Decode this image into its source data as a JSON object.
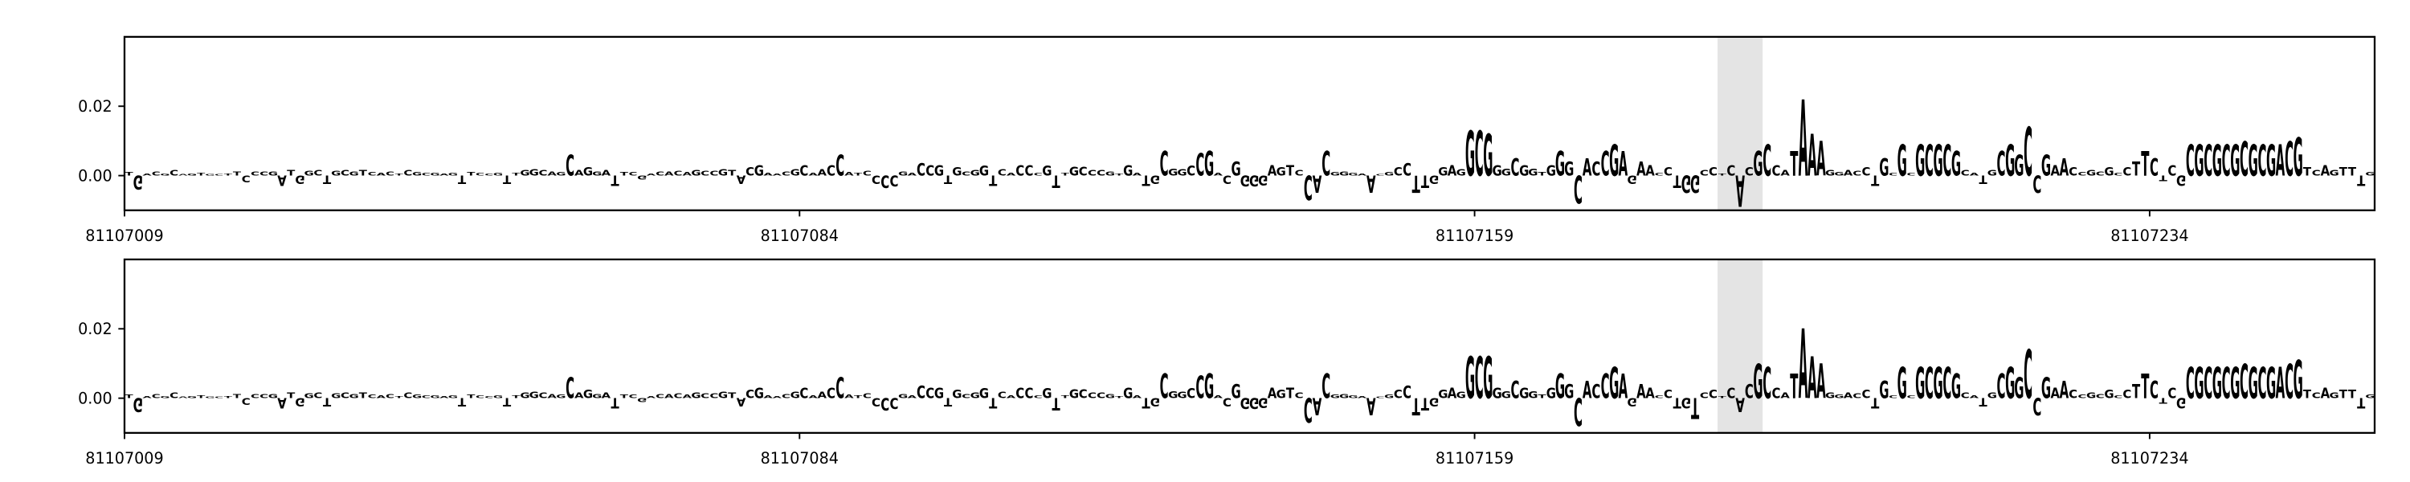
{
  "chart_data": [
    {
      "type": "logo",
      "sequence": "TGACGCAGTGCTTCCCGATGGCTGCGTCACTCGCGAGTTCCGTTGGCAGCAGGATTCGACACAGCCGTACGAACGCAACCATCCCCGACCGTGCGGTCACCCGTTGCCCGTGATGCGGCCGACGGGGAGTCCACGGGAACGCCTTGGAGGCGGGCGGTGGGCACCGAGAACCTGGCCTCACGCCATAAAGGACCTGCGCGCGCGCATGCGGCCGAACCGCGCCTTCTCGCGCGCGCGCGACGTCAGTTTG",
      "values": [
        0.001,
        -0.004,
        0.0006,
        0.0012,
        0.0006,
        0.0016,
        0.0004,
        0.0006,
        0.0008,
        0.0004,
        0.0004,
        0.0006,
        0.0012,
        -0.002,
        0.0012,
        0.0012,
        0.0012,
        -0.003,
        0.0016,
        -0.0024,
        0.0014,
        0.0016,
        -0.0024,
        0.0014,
        0.0016,
        0.0012,
        0.0016,
        0.001,
        0.0008,
        0.0012,
        0.0006,
        0.0016,
        0.001,
        0.0008,
        0.0008,
        0.0006,
        0.0008,
        -0.0024,
        0.001,
        0.0008,
        0.0006,
        0.0008,
        -0.0024,
        0.0008,
        0.0016,
        0.0018,
        0.0016,
        0.0012,
        0.001,
        0.006,
        0.0016,
        0.0024,
        0.0012,
        0.0016,
        -0.003,
        0.001,
        0.001,
        -0.0012,
        0.0006,
        0.0012,
        0.0012,
        0.0014,
        0.001,
        0.0016,
        0.0014,
        0.0014,
        0.0018,
        0.0016,
        -0.0024,
        0.0024,
        0.003,
        0.0008,
        0.0006,
        0.0012,
        0.0018,
        0.003,
        0.0008,
        0.0018,
        0.003,
        0.006,
        0.001,
        0.0008,
        0.0014,
        -0.0024,
        -0.0036,
        -0.0032,
        0.0012,
        0.0008,
        0.0036,
        0.003,
        0.003,
        -0.0024,
        0.0024,
        0.0012,
        0.0016,
        0.0028,
        -0.003,
        0.0018,
        0.0008,
        0.003,
        0.003,
        0.0008,
        0.0028,
        -0.0036,
        0.0008,
        0.0026,
        0.0026,
        0.0016,
        0.0016,
        0.0012,
        0.0006,
        0.003,
        0.0008,
        -0.003,
        -0.0024,
        0.007,
        0.002,
        0.0018,
        0.0028,
        0.0064,
        0.007,
        0.0008,
        -0.0024,
        0.004,
        -0.0032,
        -0.0032,
        -0.0028,
        0.003,
        0.0024,
        0.003,
        0.0016,
        -0.007,
        -0.005,
        0.007,
        0.001,
        0.0012,
        0.0008,
        0.0006,
        -0.005,
        0.0004,
        0.001,
        0.0024,
        0.0036,
        -0.005,
        -0.0036,
        -0.0024,
        0.0024,
        0.003,
        0.0018,
        0.013,
        0.013,
        0.012,
        0.003,
        0.002,
        0.005,
        0.003,
        0.002,
        0.001,
        0.003,
        0.007,
        0.004,
        -0.008,
        0.005,
        0.004,
        0.007,
        0.009,
        0.007,
        -0.0024,
        0.004,
        0.003,
        0.0008,
        0.0024,
        -0.0036,
        -0.005,
        -0.005,
        0.0016,
        0.0024,
        0.0006,
        0.003,
        -0.009,
        0.0024,
        0.007,
        0.009,
        0.003,
        0.0016,
        0.007,
        0.022,
        0.012,
        0.01,
        0.0016,
        0.001,
        0.0016,
        0.0014,
        0.0024,
        -0.003,
        0.005,
        0.0008,
        0.009,
        0.0008,
        0.009,
        0.009,
        0.009,
        0.009,
        0.007,
        0.0016,
        0.0008,
        -0.0024,
        0.0016,
        0.007,
        0.009,
        0.006,
        0.014,
        -0.005,
        0.006,
        0.003,
        0.005,
        0.0024,
        0.001,
        0.0016,
        0.0012,
        0.0024,
        0.0008,
        0.0024,
        0.004,
        0.007,
        0.005,
        -0.0016,
        0.003,
        -0.003,
        0.009,
        0.009,
        0.009,
        0.009,
        0.009,
        0.009,
        0.01,
        0.009,
        0.009,
        0.009,
        0.009,
        0.01,
        0.011,
        0.0024,
        0.0016,
        0.003,
        0.0016,
        0.0024,
        0.0024,
        -0.003,
        0.001
      ],
      "colors": {
        "A": "#008000",
        "C": "#0000ff",
        "G": "#ffa500",
        "T": "#ff0000"
      },
      "xlim": [
        81107009,
        81107259
      ],
      "xticks": [
        81107009,
        81107084,
        81107159,
        81107234
      ],
      "ylim": [
        -0.01,
        0.04
      ],
      "yticks": [
        {
          "value": 0,
          "label": "0.00"
        },
        {
          "value": 0.02,
          "label": "0.02"
        }
      ],
      "highlight": [
        81107186,
        81107191
      ]
    },
    {
      "type": "logo",
      "sequence": "TGACGCAGTGCTTCCCGATGGCTGCGTCACTCGCGAGTTCCGTTGGCAGCAGGATTCGACACAGCCGTACGAACGCAACCATCCCCGACCGTGCGGTCACCCGTTGCCCGTGATGCGGCCGACGGGGAGTCCACGGGAACGCCTTGGAGGCGGGCGGTGGGCACCGAGAACCTGTCCTCACGCCATAAAGGACCTGCGCGCGCGCATGCGGCCGAACCGCGCCTTCTCGCGCGCGCGCGACGTCAGTTTG",
      "values": [
        0.001,
        -0.004,
        0.0006,
        0.0012,
        0.0006,
        0.0016,
        0.0004,
        0.0006,
        0.0008,
        0.0004,
        0.0004,
        0.0006,
        0.0012,
        -0.002,
        0.0012,
        0.0012,
        0.0012,
        -0.003,
        0.0016,
        -0.0024,
        0.0014,
        0.0016,
        -0.0024,
        0.0014,
        0.0016,
        0.0012,
        0.0016,
        0.001,
        0.0008,
        0.0012,
        0.0006,
        0.0016,
        0.001,
        0.0008,
        0.0008,
        0.0006,
        0.0008,
        -0.0024,
        0.001,
        0.0008,
        0.0006,
        0.0008,
        -0.0024,
        0.0008,
        0.0016,
        0.0018,
        0.0016,
        0.0012,
        0.001,
        0.006,
        0.0016,
        0.0024,
        0.0012,
        0.0016,
        -0.003,
        0.001,
        0.001,
        -0.0012,
        0.0006,
        0.0012,
        0.0012,
        0.0014,
        0.001,
        0.0016,
        0.0014,
        0.0014,
        0.0018,
        0.0016,
        -0.0024,
        0.0024,
        0.003,
        0.0008,
        0.0006,
        0.0012,
        0.0018,
        0.003,
        0.0008,
        0.0018,
        0.003,
        0.006,
        0.001,
        0.0008,
        0.0014,
        -0.0024,
        -0.0036,
        -0.0032,
        0.0012,
        0.0008,
        0.0036,
        0.003,
        0.003,
        -0.0024,
        0.0024,
        0.0012,
        0.0016,
        0.0028,
        -0.003,
        0.0018,
        0.0008,
        0.003,
        0.003,
        0.0008,
        0.0028,
        -0.0036,
        0.0008,
        0.0026,
        0.0026,
        0.0016,
        0.0016,
        0.0012,
        0.0006,
        0.003,
        0.0008,
        -0.003,
        -0.0024,
        0.007,
        0.002,
        0.0018,
        0.0028,
        0.0064,
        0.007,
        0.0008,
        -0.0024,
        0.004,
        -0.0032,
        -0.0032,
        -0.0028,
        0.003,
        0.0024,
        0.003,
        0.0016,
        -0.007,
        -0.005,
        0.007,
        0.001,
        0.0012,
        0.0008,
        0.0006,
        -0.005,
        0.0004,
        0.001,
        0.0024,
        0.0036,
        -0.005,
        -0.0036,
        -0.0024,
        0.0024,
        0.003,
        0.0018,
        0.012,
        0.012,
        0.012,
        0.003,
        0.002,
        0.005,
        0.003,
        0.002,
        0.001,
        0.003,
        0.007,
        0.004,
        -0.008,
        0.005,
        0.004,
        0.007,
        0.009,
        0.007,
        -0.0024,
        0.004,
        0.003,
        0.0008,
        0.0024,
        -0.003,
        -0.003,
        -0.006,
        0.0016,
        0.0024,
        0.0006,
        0.003,
        -0.004,
        0.004,
        0.01,
        0.009,
        0.003,
        0.0016,
        0.007,
        0.02,
        0.012,
        0.01,
        0.0016,
        0.001,
        0.0016,
        0.0014,
        0.0024,
        -0.003,
        0.005,
        0.0008,
        0.009,
        0.0008,
        0.009,
        0.009,
        0.009,
        0.009,
        0.007,
        0.0016,
        0.0008,
        -0.0024,
        0.0016,
        0.007,
        0.009,
        0.006,
        0.014,
        -0.005,
        0.006,
        0.003,
        0.005,
        0.0024,
        0.001,
        0.0016,
        0.0012,
        0.0024,
        0.0008,
        0.0024,
        0.004,
        0.007,
        0.005,
        -0.0016,
        0.003,
        -0.003,
        0.009,
        0.009,
        0.009,
        0.009,
        0.009,
        0.009,
        0.01,
        0.009,
        0.009,
        0.009,
        0.009,
        0.01,
        0.011,
        0.0024,
        0.0016,
        0.003,
        0.0016,
        0.0024,
        0.0024,
        -0.003,
        0.001
      ],
      "colors": {
        "A": "#008000",
        "C": "#0000ff",
        "G": "#ffa500",
        "T": "#ff0000"
      },
      "xlim": [
        81107009,
        81107259
      ],
      "xticks": [
        81107009,
        81107084,
        81107159,
        81107234
      ],
      "ylim": [
        -0.01,
        0.04
      ],
      "yticks": [
        {
          "value": 0,
          "label": "0.00"
        },
        {
          "value": 0.02,
          "label": "0.02"
        }
      ],
      "highlight": [
        81107186,
        81107191
      ]
    }
  ]
}
